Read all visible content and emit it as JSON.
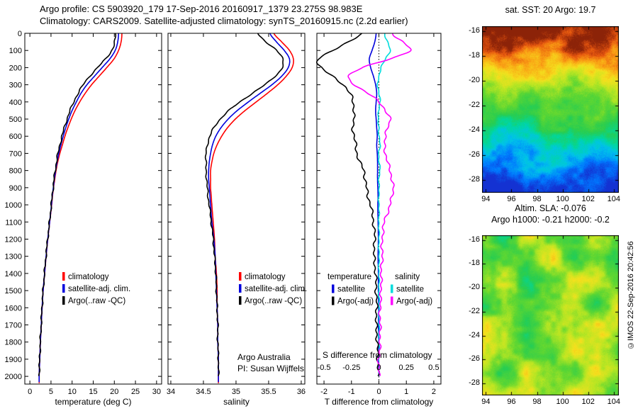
{
  "header": {
    "line1": "Argo profile: CS 5903920_179 17-Sep-2016 20160917_1379 23.275S 98.983E",
    "line2": "Climatology: CARS2009. Satellite-adjusted climatology: synTS_20160915.nc (2.2d earlier)"
  },
  "copyright": "©IMOS 22-Sep-2016 20:42:56",
  "chart_data": {
    "depth_ticks": [
      0,
      100,
      200,
      300,
      400,
      500,
      600,
      700,
      800,
      900,
      1000,
      1100,
      1200,
      1300,
      1400,
      1500,
      1600,
      1700,
      1800,
      1900,
      2000
    ],
    "depths_m": [
      0,
      50,
      100,
      150,
      200,
      250,
      300,
      350,
      400,
      450,
      500,
      550,
      600,
      650,
      700,
      750,
      800,
      850,
      900,
      950,
      1000,
      1100,
      1200,
      1300,
      1400,
      1500,
      1600,
      1700,
      1800,
      1900,
      2000
    ],
    "profiles": [
      {
        "type": "line",
        "name": "temperature-profile",
        "xlabel": "temperature (deg C)",
        "xticks": [
          0,
          5,
          10,
          15,
          20,
          25,
          30
        ],
        "xlim": [
          -1.2,
          31.2
        ],
        "ylim": [
          0,
          2045
        ],
        "legend": [
          {
            "label": "climatology",
            "color": "#ff0000"
          },
          {
            "label": "satellite-adj. clim.",
            "color": "#0000dd"
          },
          {
            "label": "Argo(..raw -QC)",
            "color": "#000000"
          }
        ],
        "series": [
          {
            "name": "climatology",
            "color": "#ff0000",
            "dmax": 2043,
            "values": [
              21.8,
              21.6,
              21.0,
              19.9,
              18.2,
              16.4,
              14.6,
              13.1,
              11.8,
              10.7,
              9.8,
              9.0,
              8.3,
              7.7,
              7.1,
              6.6,
              6.2,
              5.9,
              5.6,
              5.35,
              5.15,
              4.7,
              4.25,
              3.85,
              3.5,
              3.15,
              2.9,
              2.7,
              2.5,
              2.35,
              2.2
            ]
          },
          {
            "name": "satellite-adj-clim",
            "color": "#0000dd",
            "dmax": 2035,
            "values": [
              21.0,
              20.8,
              20.2,
              18.9,
              17.1,
              15.3,
              13.5,
              12.1,
              11.0,
              10.0,
              9.2,
              8.5,
              7.9,
              7.35,
              6.85,
              6.45,
              6.1,
              5.8,
              5.55,
              5.3,
              5.1,
              4.68,
              4.23,
              3.83,
              3.48,
              3.14,
              2.89,
              2.69,
              2.49,
              2.34,
              2.19
            ]
          },
          {
            "name": "argo-raw",
            "color": "#000000",
            "wiggle": 1.0,
            "dmax": 2000,
            "values": [
              20.3,
              20.1,
              19.4,
              17.9,
              16.0,
              14.2,
              12.6,
              11.4,
              10.4,
              9.5,
              8.8,
              8.15,
              7.6,
              7.1,
              6.65,
              6.3,
              6.0,
              5.72,
              5.5,
              5.28,
              5.05,
              4.65,
              4.2,
              3.8,
              3.45,
              3.12,
              2.87,
              2.67,
              2.47,
              2.32,
              2.17
            ]
          }
        ]
      },
      {
        "type": "line",
        "name": "salinity-profile",
        "xlabel": "salinity",
        "xticks": [
          34,
          34.5,
          35,
          35.5,
          36
        ],
        "xlim": [
          33.957,
          36.055
        ],
        "ylim": [
          0,
          2045
        ],
        "legend": [
          {
            "label": "climatology",
            "color": "#ff0000"
          },
          {
            "label": "satellite-adj. clim.",
            "color": "#0000dd"
          },
          {
            "label": "Argo(..raw -QC)",
            "color": "#000000"
          }
        ],
        "annotations": [
          "Argo Australia",
          "PI: Susan Wijffels"
        ],
        "series": [
          {
            "name": "climatology",
            "color": "#ff0000",
            "dmax": 2043,
            "values": [
              35.58,
              35.7,
              35.82,
              35.88,
              35.86,
              35.77,
              35.64,
              35.48,
              35.31,
              35.14,
              34.99,
              34.87,
              34.78,
              34.71,
              34.66,
              34.63,
              34.61,
              34.61,
              34.61,
              34.62,
              34.63,
              34.65,
              34.67,
              34.68,
              34.7,
              34.71,
              34.71,
              34.72,
              34.72,
              34.73,
              34.73
            ]
          },
          {
            "name": "satellite-adj-clim",
            "color": "#0000dd",
            "dmax": 2035,
            "values": [
              35.52,
              35.62,
              35.74,
              35.82,
              35.8,
              35.7,
              35.55,
              35.37,
              35.19,
              35.02,
              34.88,
              34.77,
              34.69,
              34.64,
              34.61,
              34.59,
              34.58,
              34.58,
              34.59,
              34.6,
              34.61,
              34.63,
              34.66,
              34.68,
              34.69,
              34.7,
              34.71,
              34.72,
              34.72,
              34.73,
              34.73
            ]
          },
          {
            "name": "argo-raw",
            "color": "#000000",
            "wiggle": 1.0,
            "dmax": 2000,
            "values": [
              35.34,
              35.46,
              35.62,
              35.72,
              35.71,
              35.6,
              35.44,
              35.25,
              35.06,
              34.89,
              34.76,
              34.66,
              34.6,
              34.56,
              34.54,
              34.54,
              34.54,
              34.55,
              34.56,
              34.57,
              34.59,
              34.62,
              34.65,
              34.67,
              34.69,
              34.7,
              34.71,
              34.72,
              34.72,
              34.73,
              34.73
            ]
          }
        ]
      },
      {
        "type": "line",
        "name": "difference-profile",
        "xlabel": "T difference from climatology",
        "xticks": [
          -2,
          -1,
          0,
          1,
          2
        ],
        "xlim": [
          -2.26,
          2.26
        ],
        "ylim": [
          0,
          2045
        ],
        "zeroline": true,
        "legend_groups": [
          {
            "header": "temperature",
            "items": [
              {
                "label": "satellite",
                "color": "#0000dd"
              },
              {
                "label": "Argo(-adj)",
                "color": "#000000"
              }
            ]
          },
          {
            "header": "salinity",
            "items": [
              {
                "label": "satellite",
                "color": "#00dcdc"
              },
              {
                "label": "Argo(-adj)",
                "color": "#ff00ff"
              }
            ]
          }
        ],
        "inner_axis": {
          "label": "S difference from climatology",
          "tick_labels": [
            "-0.5",
            "-0.25",
            "0",
            "0.25",
            "0.5"
          ],
          "tick_values": [
            -0.5,
            -0.25,
            0,
            0.25,
            0.5
          ],
          "scale": 4
        },
        "series": [
          {
            "name": "t-diff-satellite",
            "color": "#0000dd",
            "dmax": 2000,
            "values": [
              -0.1,
              -0.15,
              -0.25,
              -0.35,
              -0.3,
              -0.2,
              -0.12,
              -0.08,
              -0.1,
              -0.12,
              -0.1,
              -0.08,
              -0.06,
              -0.08,
              -0.06,
              -0.05,
              -0.05,
              -0.05,
              -0.04,
              -0.03,
              -0.04,
              -0.03,
              -0.02,
              -0.03,
              -0.02,
              -0.02,
              -0.01,
              -0.02,
              -0.01,
              -0.01,
              0.0
            ]
          },
          {
            "name": "s-diff-satellite",
            "color": "#00dcdc",
            "scale": 4,
            "wiggle": 1.0,
            "dmax": 2000,
            "values": [
              0.05,
              0.08,
              0.1,
              0.06,
              0.02,
              0.0,
              -0.01,
              0.0,
              0.01,
              0.0,
              -0.01,
              0.0,
              0.0,
              0.01,
              0.0,
              0.0,
              0.01,
              0.0,
              0.0,
              0.0,
              0.0,
              0.0,
              0.0,
              0.0,
              0.0,
              0.0,
              0.0,
              0.0,
              0.0,
              0.0,
              0.0
            ]
          },
          {
            "name": "t-diff-argo",
            "color": "#000000",
            "wiggle": 2.0,
            "dmax": 2000,
            "values": [
              -0.6,
              -1.1,
              -1.7,
              -2.2,
              -2.1,
              -1.7,
              -1.3,
              -1.05,
              -0.95,
              -0.9,
              -0.92,
              -0.95,
              -0.9,
              -0.85,
              -0.8,
              -0.7,
              -0.55,
              -0.5,
              -0.45,
              -0.4,
              -0.3,
              -0.2,
              -0.15,
              -0.18,
              -0.12,
              -0.1,
              -0.08,
              -0.1,
              -0.06,
              -0.04,
              -0.03
            ]
          },
          {
            "name": "s-diff-argo",
            "color": "#ff00ff",
            "scale": 4,
            "wiggle": 2.0,
            "dmax": 2000,
            "values": [
              0.12,
              0.22,
              0.28,
              0.1,
              -0.15,
              -0.28,
              -0.22,
              -0.1,
              0.0,
              0.06,
              0.1,
              0.08,
              0.06,
              0.05,
              0.06,
              0.08,
              0.1,
              0.12,
              0.13,
              0.12,
              0.1,
              0.05,
              0.03,
              0.03,
              0.02,
              0.02,
              0.01,
              0.01,
              0.01,
              0.0,
              0.0
            ]
          }
        ]
      }
    ],
    "maps": [
      {
        "type": "heatmap",
        "name": "sst",
        "kind": "sst",
        "title": "sat. SST: 20 Argo: 19.7",
        "xticks": [
          94,
          96,
          98,
          100,
          102,
          104
        ],
        "yticks": [
          -16,
          -18,
          -20,
          -22,
          -24,
          -26,
          -28
        ],
        "lon_range": [
          93.7,
          104.4
        ],
        "lat_range": [
          -29.0,
          -15.6
        ],
        "value_note": "satellite SST field, warm (dark red) in north grading to cool (blue) in south"
      },
      {
        "type": "heatmap",
        "name": "sla",
        "kind": "sla",
        "title": "Altim. SLA: -0.076",
        "subtitle": "Argo h1000: -0.21 h2000: -0.2",
        "xticks": [
          94,
          96,
          98,
          100,
          102,
          104
        ],
        "yticks": [
          -16,
          -18,
          -20,
          -22,
          -24,
          -26,
          -28
        ],
        "lon_range": [
          93.7,
          104.4
        ],
        "lat_range": [
          -29.0,
          -15.6
        ],
        "value_note": "altimetric sea-level anomaly field, green background with yellow highs"
      }
    ]
  }
}
